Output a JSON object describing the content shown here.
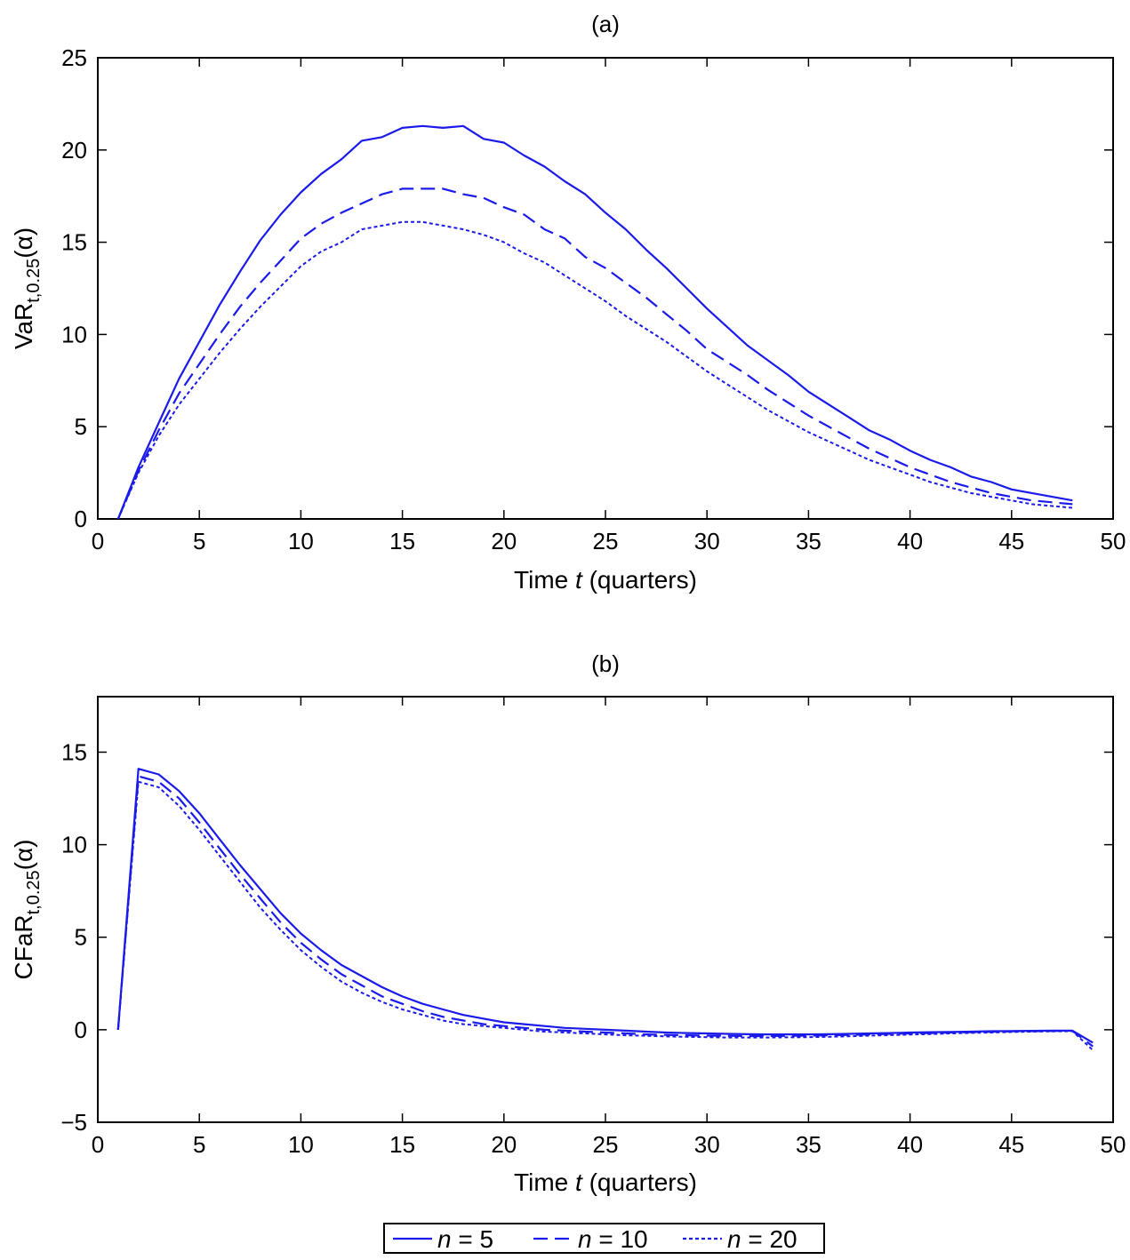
{
  "chart_data": [
    {
      "id": "a",
      "type": "line",
      "title": "(a)",
      "xlabel": {
        "prefix": "Time ",
        "var": "t",
        "suffix": " (quarters)"
      },
      "ylabel": {
        "base": "VaR",
        "sub": "t,0.25",
        "suffix": "(α)"
      },
      "xlim": [
        0,
        50
      ],
      "ylim": [
        0,
        25
      ],
      "xticks": [
        0,
        5,
        10,
        15,
        20,
        25,
        30,
        35,
        40,
        45,
        50
      ],
      "yticks": [
        0,
        5,
        10,
        15,
        20,
        25
      ],
      "x": [
        1,
        2,
        3,
        4,
        5,
        6,
        7,
        8,
        9,
        10,
        11,
        12,
        13,
        14,
        15,
        16,
        17,
        18,
        19,
        20,
        21,
        22,
        23,
        24,
        25,
        26,
        27,
        28,
        29,
        30,
        31,
        32,
        33,
        34,
        35,
        36,
        37,
        38,
        39,
        40,
        41,
        42,
        43,
        44,
        45,
        46,
        47,
        48
      ],
      "series": [
        {
          "name": "n = 5",
          "style": "solid",
          "values": [
            0,
            2.8,
            5.2,
            7.6,
            9.6,
            11.6,
            13.4,
            15.1,
            16.5,
            17.7,
            18.7,
            19.5,
            20.5,
            20.7,
            21.2,
            21.3,
            21.2,
            21.3,
            20.6,
            20.4,
            19.7,
            19.1,
            18.3,
            17.6,
            16.6,
            15.7,
            14.6,
            13.6,
            12.5,
            11.4,
            10.4,
            9.4,
            8.6,
            7.8,
            6.9,
            6.2,
            5.5,
            4.8,
            4.3,
            3.7,
            3.2,
            2.8,
            2.3,
            2.0,
            1.6,
            1.4,
            1.2,
            1.0
          ]
        },
        {
          "name": "n = 10",
          "style": "dashed",
          "values": [
            0,
            2.6,
            4.8,
            6.8,
            8.4,
            10.0,
            11.5,
            12.8,
            14.0,
            15.2,
            16.0,
            16.6,
            17.1,
            17.6,
            17.9,
            17.9,
            17.9,
            17.6,
            17.4,
            16.9,
            16.5,
            15.7,
            15.2,
            14.2,
            13.6,
            12.8,
            12.0,
            11.1,
            10.2,
            9.2,
            8.5,
            7.8,
            7.0,
            6.3,
            5.6,
            5.0,
            4.4,
            3.8,
            3.3,
            2.8,
            2.4,
            2.0,
            1.7,
            1.4,
            1.2,
            1.0,
            0.9,
            0.8
          ]
        },
        {
          "name": "n = 20",
          "style": "dotted",
          "values": [
            0,
            2.5,
            4.5,
            6.2,
            7.6,
            9.0,
            10.3,
            11.5,
            12.6,
            13.7,
            14.5,
            15.0,
            15.7,
            15.9,
            16.1,
            16.1,
            15.9,
            15.7,
            15.4,
            15.0,
            14.4,
            13.9,
            13.2,
            12.5,
            11.8,
            11.0,
            10.3,
            9.6,
            8.8,
            8.0,
            7.3,
            6.6,
            5.9,
            5.3,
            4.7,
            4.2,
            3.7,
            3.2,
            2.8,
            2.4,
            2.0,
            1.7,
            1.4,
            1.2,
            1.0,
            0.8,
            0.7,
            0.6
          ]
        }
      ]
    },
    {
      "id": "b",
      "type": "line",
      "title": "(b)",
      "xlabel": {
        "prefix": "Time ",
        "var": "t",
        "suffix": " (quarters)"
      },
      "ylabel": {
        "base": "CFaR",
        "sub": "t,0.25",
        "suffix": "(α)"
      },
      "xlim": [
        0,
        50
      ],
      "ylim": [
        -5,
        18
      ],
      "xticks": [
        0,
        5,
        10,
        15,
        20,
        25,
        30,
        35,
        40,
        45,
        50
      ],
      "yticks": [
        -5,
        0,
        5,
        10,
        15
      ],
      "x": [
        1,
        2,
        3,
        4,
        5,
        6,
        7,
        8,
        9,
        10,
        11,
        12,
        13,
        14,
        15,
        16,
        17,
        18,
        19,
        20,
        21,
        22,
        23,
        24,
        25,
        26,
        27,
        28,
        29,
        30,
        31,
        32,
        33,
        34,
        35,
        36,
        37,
        38,
        39,
        40,
        41,
        42,
        43,
        44,
        45,
        46,
        47,
        48,
        49
      ],
      "series": [
        {
          "name": "n = 5",
          "style": "solid",
          "values": [
            0,
            14.1,
            13.8,
            12.9,
            11.7,
            10.3,
            8.9,
            7.6,
            6.3,
            5.2,
            4.3,
            3.5,
            2.9,
            2.3,
            1.8,
            1.4,
            1.1,
            0.8,
            0.6,
            0.4,
            0.3,
            0.2,
            0.1,
            0.05,
            0,
            -0.05,
            -0.1,
            -0.15,
            -0.18,
            -0.2,
            -0.22,
            -0.24,
            -0.25,
            -0.25,
            -0.25,
            -0.24,
            -0.22,
            -0.2,
            -0.18,
            -0.15,
            -0.13,
            -0.12,
            -0.1,
            -0.08,
            -0.07,
            -0.06,
            -0.05,
            -0.05,
            -0.7
          ]
        },
        {
          "name": "n = 10",
          "style": "dashed",
          "values": [
            0,
            13.7,
            13.4,
            12.5,
            11.2,
            9.8,
            8.4,
            7.1,
            5.8,
            4.7,
            3.8,
            3.0,
            2.4,
            1.8,
            1.4,
            1.0,
            0.7,
            0.5,
            0.3,
            0.2,
            0.1,
            0,
            -0.05,
            -0.1,
            -0.15,
            -0.2,
            -0.25,
            -0.28,
            -0.3,
            -0.32,
            -0.33,
            -0.34,
            -0.34,
            -0.33,
            -0.32,
            -0.3,
            -0.28,
            -0.25,
            -0.22,
            -0.2,
            -0.18,
            -0.15,
            -0.13,
            -0.11,
            -0.09,
            -0.08,
            -0.07,
            -0.06,
            -0.9
          ]
        },
        {
          "name": "n = 20",
          "style": "dotted",
          "values": [
            0,
            13.4,
            13.1,
            12.1,
            10.8,
            9.4,
            8.0,
            6.6,
            5.4,
            4.3,
            3.4,
            2.6,
            2.0,
            1.5,
            1.1,
            0.8,
            0.5,
            0.3,
            0.2,
            0.1,
            0,
            -0.1,
            -0.15,
            -0.2,
            -0.25,
            -0.3,
            -0.33,
            -0.36,
            -0.38,
            -0.4,
            -0.42,
            -0.42,
            -0.42,
            -0.41,
            -0.4,
            -0.38,
            -0.35,
            -0.32,
            -0.29,
            -0.26,
            -0.23,
            -0.2,
            -0.17,
            -0.15,
            -0.12,
            -0.1,
            -0.09,
            -0.08,
            -1.1
          ]
        }
      ]
    }
  ],
  "legend": {
    "entries": [
      {
        "var": "n",
        "text": " = 5",
        "style": "solid"
      },
      {
        "var": "n",
        "text": " = 10",
        "style": "dashed"
      },
      {
        "var": "n",
        "text": " = 20",
        "style": "dotted"
      }
    ]
  },
  "colors": {
    "line": "#1a1aeb",
    "axis": "#000000"
  }
}
